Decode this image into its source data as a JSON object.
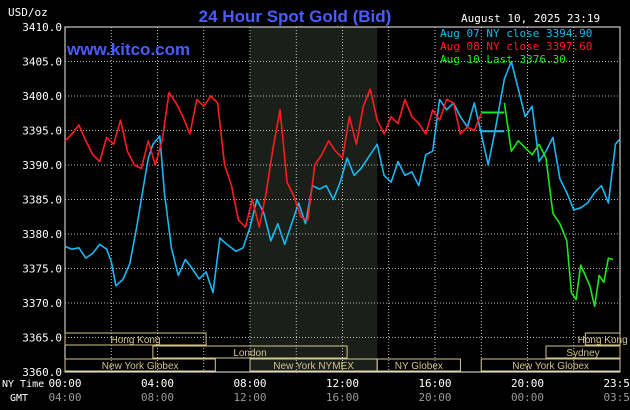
{
  "header": {
    "currency": "USD/oz",
    "title": "24 Hour Spot Gold (Bid)",
    "datetime": "August 10, 2025 23:19",
    "watermark": "www.kitco.com"
  },
  "colors": {
    "background": "#000000",
    "title": "#4a5cff",
    "grid": "#f0f0f0",
    "axis_text": "#ffffff",
    "series_aug07": "#1ab7f0",
    "series_aug08": "#ff1c1c",
    "series_aug10": "#1ee61e",
    "session_box": "#d2c48c",
    "shade": "#1a1f1a"
  },
  "chart_data": {
    "type": "line",
    "title": "24 Hour Spot Gold (Bid)",
    "ylabel": "USD/oz",
    "ylim": [
      3360,
      3410
    ],
    "ytick_labels": [
      "3410.0",
      "3405.0",
      "3400.0",
      "3395.0",
      "3390.0",
      "3385.0",
      "3380.0",
      "3375.0",
      "3370.0",
      "3365.0",
      "3360.0"
    ],
    "x_range_hours": [
      0,
      24
    ],
    "x_ny_time_labels": [
      "00:00",
      "04:00",
      "08:00",
      "12:00",
      "16:00",
      "20:00",
      "23:59"
    ],
    "x_gmt_labels": [
      "04:00",
      "08:00",
      "12:00",
      "16:00",
      "20:00",
      "00:00",
      "03:59"
    ],
    "x_row_labels": {
      "ny_time": "NY Time",
      "gmt": "GMT"
    },
    "grid": true,
    "shaded_band_hours": [
      8.0,
      13.5
    ],
    "legend": [
      {
        "text": "Aug 07 NY close 3394.90",
        "color": "#1ab7f0"
      },
      {
        "text": "Aug 08 NY close 3397.60",
        "color": "#ff1c1c"
      },
      {
        "text": "Aug 10 Last 3376.30",
        "color": "#1ee61e"
      }
    ],
    "reference_levels": [
      {
        "hour_start": 18.0,
        "hour_end": 19.0,
        "value": 3394.9,
        "color": "#1ab7f0"
      },
      {
        "hour_start": 18.0,
        "hour_end": 19.0,
        "value": 3397.6,
        "color": "#1ee61e"
      }
    ],
    "series": [
      {
        "name": "Aug 07",
        "color": "#1ab7f0",
        "x": [
          0,
          0.3,
          0.6,
          0.9,
          1.2,
          1.5,
          1.8,
          2.0,
          2.2,
          2.5,
          2.8,
          3.1,
          3.4,
          3.6,
          3.8,
          4.1,
          4.3,
          4.6,
          4.9,
          5.2,
          5.5,
          5.8,
          6.1,
          6.4,
          6.7,
          7.0,
          7.4,
          7.7,
          8.0,
          8.3,
          8.6,
          8.9,
          9.2,
          9.5,
          9.8,
          10.1,
          10.4,
          10.7,
          11.0,
          11.3,
          11.6,
          11.9,
          12.2,
          12.5,
          12.8,
          13.1,
          13.5,
          13.8,
          14.1,
          14.4,
          14.7,
          15.0,
          15.3,
          15.6,
          15.9,
          16.2,
          16.5,
          16.8,
          17.1,
          17.4,
          17.7,
          18.0,
          18.3,
          18.6,
          19.0,
          19.3,
          19.6,
          19.9,
          20.2,
          20.5,
          20.8,
          21.1,
          21.4,
          21.7,
          22.0,
          22.3,
          22.6,
          22.9,
          23.2,
          23.5,
          23.8,
          23.98
        ],
        "values": [
          3378.2,
          3377.8,
          3378.0,
          3376.5,
          3377.2,
          3378.5,
          3377.8,
          3376.0,
          3372.5,
          3373.4,
          3375.7,
          3381.0,
          3387.0,
          3391.0,
          3393.0,
          3394.2,
          3386.0,
          3378.0,
          3374.0,
          3376.3,
          3375.0,
          3373.5,
          3374.5,
          3371.5,
          3379.4,
          3378.5,
          3377.5,
          3378.0,
          3381.0,
          3385.0,
          3383.0,
          3379.0,
          3381.5,
          3378.5,
          3381.5,
          3384.5,
          3381.5,
          3387.0,
          3386.5,
          3387.0,
          3385.0,
          3387.5,
          3391.0,
          3388.5,
          3389.5,
          3391.0,
          3393.0,
          3388.5,
          3387.5,
          3390.5,
          3388.5,
          3389.0,
          3387.0,
          3391.5,
          3392.0,
          3399.5,
          3398.0,
          3399.0,
          3397.0,
          3395.5,
          3399.0,
          3394.5,
          3390.0,
          3395.0,
          3402.5,
          3405.0,
          3401.0,
          3397.0,
          3398.5,
          3390.5,
          3392.0,
          3394.0,
          3388.0,
          3386.0,
          3383.5,
          3383.8,
          3384.5,
          3386.0,
          3387.0,
          3384.5,
          3393.0,
          3393.7
        ]
      },
      {
        "name": "Aug 08",
        "color": "#ff1c1c",
        "x": [
          0,
          0.3,
          0.6,
          0.9,
          1.2,
          1.5,
          1.8,
          2.1,
          2.4,
          2.7,
          3.0,
          3.3,
          3.6,
          3.9,
          4.2,
          4.5,
          4.8,
          5.1,
          5.4,
          5.7,
          6.0,
          6.3,
          6.6,
          6.9,
          7.2,
          7.5,
          7.8,
          8.1,
          8.4,
          8.7,
          9.0,
          9.3,
          9.6,
          9.9,
          10.2,
          10.5,
          10.8,
          11.1,
          11.4,
          11.7,
          12.0,
          12.3,
          12.6,
          12.9,
          13.2,
          13.5,
          13.8,
          14.1,
          14.4,
          14.7,
          15.0,
          15.3,
          15.6,
          15.9,
          16.2,
          16.5,
          16.8,
          17.1,
          17.4,
          17.7,
          18.0
        ],
        "values": [
          3393.5,
          3394.5,
          3395.8,
          3393.5,
          3391.5,
          3390.5,
          3394.0,
          3393.0,
          3396.5,
          3392.0,
          3390.0,
          3389.5,
          3393.5,
          3390.0,
          3393.5,
          3400.5,
          3399.0,
          3397.0,
          3394.5,
          3399.5,
          3398.5,
          3400.0,
          3399.0,
          3390.0,
          3387.0,
          3382.0,
          3381.0,
          3385.0,
          3381.0,
          3386.0,
          3392.5,
          3398.0,
          3387.5,
          3385.5,
          3382.5,
          3382.0,
          3390.0,
          3391.5,
          3393.5,
          3392.0,
          3391.0,
          3397.0,
          3393.0,
          3398.5,
          3401.0,
          3396.5,
          3394.5,
          3397.0,
          3396.0,
          3399.5,
          3397.0,
          3396.0,
          3394.5,
          3398.0,
          3396.5,
          3399.5,
          3399.0,
          3394.5,
          3395.5,
          3395.0,
          3397.5
        ]
      },
      {
        "name": "Aug 10",
        "color": "#1ee61e",
        "x": [
          19.0,
          19.3,
          19.6,
          19.9,
          20.2,
          20.5,
          20.8,
          21.1,
          21.4,
          21.7,
          21.9,
          22.1,
          22.3,
          22.5,
          22.7,
          22.9,
          23.1,
          23.3,
          23.5,
          23.7
        ],
        "values": [
          3399.0,
          3392.0,
          3393.5,
          3392.5,
          3391.5,
          3393.0,
          3391.0,
          3383.0,
          3381.5,
          3379.0,
          3371.5,
          3370.5,
          3375.5,
          3374.0,
          3372.5,
          3369.5,
          3374.0,
          3373.0,
          3376.5,
          3376.3
        ]
      }
    ]
  },
  "sessions": [
    {
      "label": "Hong Kong",
      "row": 0,
      "start": 0.0,
      "end": 6.1
    },
    {
      "label": "Hong Kong",
      "row": 0,
      "start": 22.5,
      "end": 24.0
    },
    {
      "label": "London",
      "row": 1,
      "start": 3.8,
      "end": 12.2
    },
    {
      "label": "Sydney",
      "row": 1,
      "start": 20.8,
      "end": 24.0
    },
    {
      "label": "New York Globex",
      "row": 2,
      "start": 0.0,
      "end": 6.5
    },
    {
      "label": "New York NYMEX",
      "row": 2,
      "start": 8.0,
      "end": 13.5
    },
    {
      "label": "NY Globex",
      "row": 2,
      "start": 13.5,
      "end": 17.1
    },
    {
      "label": "New York Globex",
      "row": 2,
      "start": 18.0,
      "end": 24.0
    }
  ]
}
